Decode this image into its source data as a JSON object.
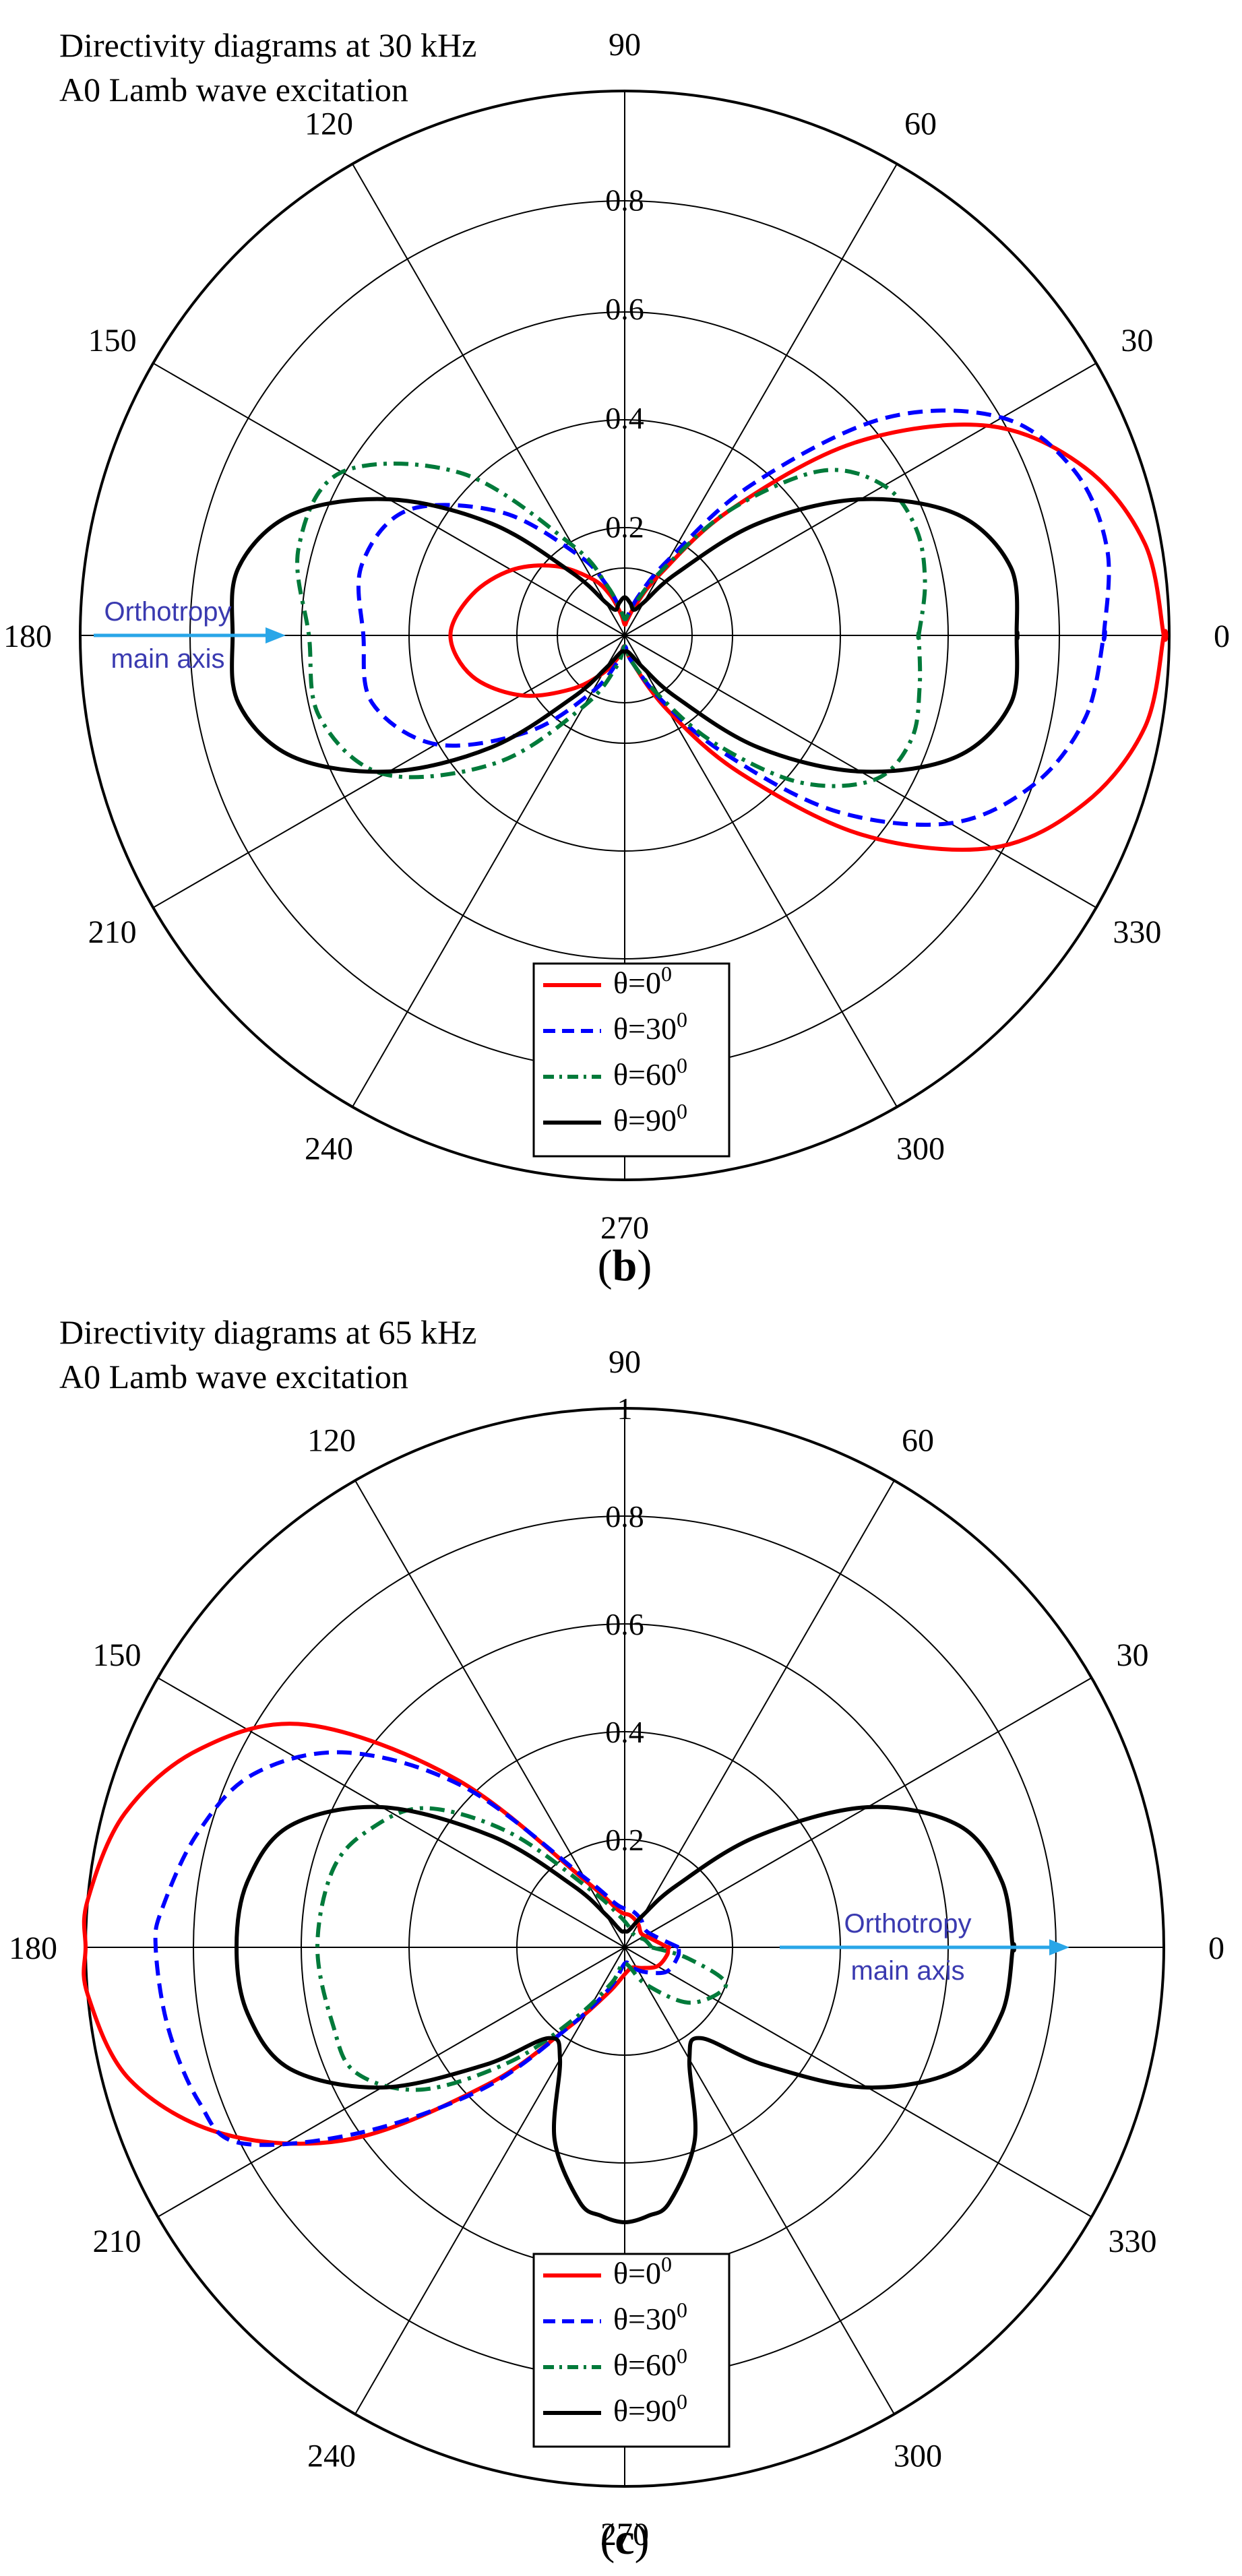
{
  "chart_data": [
    {
      "type": "polar-line",
      "panel_label": "(b)",
      "panel_letter": "b",
      "title": "Directivity diagrams at 30 kHz",
      "subtitle": "A0 Lamb wave excitation",
      "r_range": [
        0,
        1
      ],
      "radial_ticks": [
        "0.2",
        "0.4",
        "0.6",
        "0.8"
      ],
      "angle_labels": [
        "0",
        "30",
        "60",
        "90",
        "120",
        "150",
        "180",
        "210",
        "240",
        "270",
        "300",
        "330"
      ],
      "annotation": {
        "line1": "Orthotropy",
        "line2": "main axis",
        "side": "left"
      },
      "legend": [
        {
          "name": "θ=0",
          "sup": "0",
          "color": "#ff0000",
          "dash": "solid"
        },
        {
          "name": "θ=30",
          "sup": "0",
          "color": "#0000ff",
          "dash": "dash"
        },
        {
          "name": "θ=60",
          "sup": "0",
          "color": "#007a3a",
          "dash": "dashdot"
        },
        {
          "name": "θ=90",
          "sup": "0",
          "color": "#000000",
          "dash": "solid"
        }
      ],
      "series": [
        {
          "name": "θ=0",
          "points": [
            [
              0,
              0.99
            ],
            [
              10,
              0.97
            ],
            [
              20,
              0.9
            ],
            [
              30,
              0.77
            ],
            [
              40,
              0.55
            ],
            [
              50,
              0.3
            ],
            [
              60,
              0.13
            ],
            [
              70,
              0.06
            ],
            [
              80,
              0.03
            ],
            [
              90,
              0.02
            ],
            [
              100,
              0.04
            ],
            [
              110,
              0.08
            ],
            [
              120,
              0.12
            ],
            [
              135,
              0.18
            ],
            [
              150,
              0.24
            ],
            [
              165,
              0.29
            ],
            [
              180,
              0.32
            ],
            [
              195,
              0.29
            ],
            [
              210,
              0.22
            ],
            [
              225,
              0.14
            ],
            [
              240,
              0.08
            ],
            [
              255,
              0.04
            ],
            [
              270,
              0.02
            ],
            [
              285,
              0.05
            ],
            [
              300,
              0.16
            ],
            [
              310,
              0.33
            ],
            [
              320,
              0.57
            ],
            [
              330,
              0.78
            ],
            [
              340,
              0.9
            ],
            [
              350,
              0.97
            ],
            [
              360,
              0.99
            ]
          ]
        },
        {
          "name": "θ=30",
          "points": [
            [
              0,
              0.88
            ],
            [
              10,
              0.9
            ],
            [
              20,
              0.88
            ],
            [
              30,
              0.8
            ],
            [
              40,
              0.62
            ],
            [
              50,
              0.36
            ],
            [
              60,
              0.16
            ],
            [
              70,
              0.08
            ],
            [
              80,
              0.04
            ],
            [
              90,
              0.03
            ],
            [
              100,
              0.05
            ],
            [
              110,
              0.1
            ],
            [
              120,
              0.17
            ],
            [
              135,
              0.32
            ],
            [
              150,
              0.46
            ],
            [
              165,
              0.5
            ],
            [
              180,
              0.48
            ],
            [
              195,
              0.48
            ],
            [
              210,
              0.4
            ],
            [
              225,
              0.25
            ],
            [
              240,
              0.12
            ],
            [
              255,
              0.05
            ],
            [
              270,
              0.02
            ],
            [
              285,
              0.05
            ],
            [
              300,
              0.14
            ],
            [
              310,
              0.28
            ],
            [
              320,
              0.5
            ],
            [
              330,
              0.69
            ],
            [
              340,
              0.8
            ],
            [
              350,
              0.86
            ],
            [
              360,
              0.88
            ]
          ]
        },
        {
          "name": "θ=60",
          "points": [
            [
              0,
              0.54
            ],
            [
              10,
              0.56
            ],
            [
              20,
              0.57
            ],
            [
              30,
              0.55
            ],
            [
              40,
              0.47
            ],
            [
              50,
              0.3
            ],
            [
              60,
              0.14
            ],
            [
              70,
              0.07
            ],
            [
              80,
              0.04
            ],
            [
              90,
              0.03
            ],
            [
              100,
              0.05
            ],
            [
              110,
              0.1
            ],
            [
              120,
              0.19
            ],
            [
              135,
              0.42
            ],
            [
              150,
              0.6
            ],
            [
              165,
              0.62
            ],
            [
              180,
              0.58
            ],
            [
              195,
              0.58
            ],
            [
              210,
              0.51
            ],
            [
              225,
              0.33
            ],
            [
              240,
              0.15
            ],
            [
              255,
              0.06
            ],
            [
              270,
              0.02
            ],
            [
              285,
              0.05
            ],
            [
              300,
              0.13
            ],
            [
              310,
              0.26
            ],
            [
              320,
              0.42
            ],
            [
              330,
              0.53
            ],
            [
              340,
              0.56
            ],
            [
              350,
              0.55
            ],
            [
              360,
              0.54
            ]
          ]
        },
        {
          "name": "θ=90",
          "points": [
            [
              0,
              0.72
            ],
            [
              10,
              0.72
            ],
            [
              20,
              0.65
            ],
            [
              30,
              0.5
            ],
            [
              40,
              0.32
            ],
            [
              50,
              0.15
            ],
            [
              60,
              0.07
            ],
            [
              70,
              0.05
            ],
            [
              80,
              0.06
            ],
            [
              90,
              0.07
            ],
            [
              100,
              0.06
            ],
            [
              110,
              0.05
            ],
            [
              120,
              0.07
            ],
            [
              130,
              0.15
            ],
            [
              140,
              0.32
            ],
            [
              150,
              0.5
            ],
            [
              160,
              0.65
            ],
            [
              170,
              0.72
            ],
            [
              180,
              0.72
            ],
            [
              190,
              0.72
            ],
            [
              200,
              0.65
            ],
            [
              210,
              0.5
            ],
            [
              220,
              0.32
            ],
            [
              230,
              0.15
            ],
            [
              240,
              0.07
            ],
            [
              250,
              0.04
            ],
            [
              260,
              0.03
            ],
            [
              270,
              0.03
            ],
            [
              280,
              0.03
            ],
            [
              290,
              0.04
            ],
            [
              300,
              0.07
            ],
            [
              310,
              0.15
            ],
            [
              320,
              0.32
            ],
            [
              330,
              0.5
            ],
            [
              340,
              0.65
            ],
            [
              350,
              0.72
            ],
            [
              360,
              0.72
            ]
          ]
        }
      ]
    },
    {
      "type": "polar-line",
      "panel_label": "(c)",
      "panel_letter": "c",
      "title": "Directivity diagrams at 65 kHz",
      "subtitle": "A0 Lamb wave excitation",
      "r_range": [
        0,
        1
      ],
      "radial_ticks": [
        "0.2",
        "0.4",
        "0.6",
        "0.8",
        "1"
      ],
      "angle_labels": [
        "0",
        "30",
        "60",
        "90",
        "120",
        "150",
        "180",
        "210",
        "240",
        "270",
        "300",
        "330"
      ],
      "annotation": {
        "line1": "Orthotropy",
        "line2": "main axis",
        "side": "right"
      },
      "legend": [
        {
          "name": "θ=0",
          "sup": "0",
          "color": "#ff0000",
          "dash": "solid"
        },
        {
          "name": "θ=30",
          "sup": "0",
          "color": "#0000ff",
          "dash": "dash"
        },
        {
          "name": "θ=60",
          "sup": "0",
          "color": "#007a3a",
          "dash": "dashdot"
        },
        {
          "name": "θ=90",
          "sup": "0",
          "color": "#000000",
          "dash": "solid"
        }
      ],
      "series": [
        {
          "name": "θ=0",
          "points": [
            [
              0,
              0.08
            ],
            [
              20,
              0.05
            ],
            [
              40,
              0.04
            ],
            [
              60,
              0.05
            ],
            [
              80,
              0.06
            ],
            [
              100,
              0.07
            ],
            [
              120,
              0.14
            ],
            [
              135,
              0.44
            ],
            [
              145,
              0.72
            ],
            [
              155,
              0.87
            ],
            [
              165,
              0.96
            ],
            [
              175,
              1.0
            ],
            [
              180,
              1.0
            ],
            [
              185,
              1.0
            ],
            [
              195,
              0.95
            ],
            [
              205,
              0.82
            ],
            [
              215,
              0.62
            ],
            [
              225,
              0.36
            ],
            [
              235,
              0.18
            ],
            [
              250,
              0.09
            ],
            [
              270,
              0.05
            ],
            [
              290,
              0.04
            ],
            [
              310,
              0.05
            ],
            [
              330,
              0.07
            ],
            [
              350,
              0.08
            ],
            [
              360,
              0.08
            ]
          ]
        },
        {
          "name": "θ=30",
          "points": [
            [
              0,
              0.1
            ],
            [
              20,
              0.06
            ],
            [
              40,
              0.05
            ],
            [
              60,
              0.06
            ],
            [
              80,
              0.07
            ],
            [
              100,
              0.08
            ],
            [
              120,
              0.15
            ],
            [
              135,
              0.42
            ],
            [
              145,
              0.63
            ],
            [
              155,
              0.76
            ],
            [
              165,
              0.82
            ],
            [
              175,
              0.86
            ],
            [
              180,
              0.87
            ],
            [
              190,
              0.86
            ],
            [
              200,
              0.84
            ],
            [
              207,
              0.8
            ],
            [
              215,
              0.6
            ],
            [
              225,
              0.37
            ],
            [
              235,
              0.18
            ],
            [
              250,
              0.08
            ],
            [
              270,
              0.03
            ],
            [
              290,
              0.04
            ],
            [
              310,
              0.06
            ],
            [
              330,
              0.09
            ],
            [
              350,
              0.1
            ],
            [
              360,
              0.1
            ]
          ]
        },
        {
          "name": "θ=60",
          "points": [
            [
              0,
              0.05
            ],
            [
              20,
              0.04
            ],
            [
              40,
              0.03
            ],
            [
              60,
              0.03
            ],
            [
              80,
              0.04
            ],
            [
              100,
              0.06
            ],
            [
              120,
              0.12
            ],
            [
              135,
              0.3
            ],
            [
              145,
              0.45
            ],
            [
              155,
              0.52
            ],
            [
              165,
              0.56
            ],
            [
              180,
              0.57
            ],
            [
              195,
              0.56
            ],
            [
              205,
              0.55
            ],
            [
              215,
              0.46
            ],
            [
              225,
              0.3
            ],
            [
              235,
              0.16
            ],
            [
              250,
              0.07
            ],
            [
              270,
              0.03
            ],
            [
              300,
              0.08
            ],
            [
              320,
              0.16
            ],
            [
              340,
              0.2
            ],
            [
              350,
              0.12
            ],
            [
              360,
              0.05
            ]
          ]
        },
        {
          "name": "θ=90",
          "points": [
            [
              0,
              0.72
            ],
            [
              10,
              0.71
            ],
            [
              20,
              0.66
            ],
            [
              30,
              0.52
            ],
            [
              40,
              0.32
            ],
            [
              50,
              0.15
            ],
            [
              60,
              0.07
            ],
            [
              70,
              0.04
            ],
            [
              80,
              0.03
            ],
            [
              90,
              0.03
            ],
            [
              100,
              0.03
            ],
            [
              110,
              0.04
            ],
            [
              120,
              0.07
            ],
            [
              130,
              0.15
            ],
            [
              140,
              0.32
            ],
            [
              150,
              0.52
            ],
            [
              160,
              0.66
            ],
            [
              170,
              0.71
            ],
            [
              180,
              0.72
            ],
            [
              190,
              0.71
            ],
            [
              200,
              0.66
            ],
            [
              210,
              0.52
            ],
            [
              220,
              0.34
            ],
            [
              230,
              0.22
            ],
            [
              240,
              0.24
            ],
            [
              250,
              0.38
            ],
            [
              260,
              0.48
            ],
            [
              265,
              0.5
            ],
            [
              270,
              0.51
            ],
            [
              275,
              0.5
            ],
            [
              280,
              0.48
            ],
            [
              290,
              0.38
            ],
            [
              300,
              0.24
            ],
            [
              310,
              0.22
            ],
            [
              320,
              0.34
            ],
            [
              330,
              0.52
            ],
            [
              340,
              0.66
            ],
            [
              350,
              0.71
            ],
            [
              360,
              0.72
            ]
          ]
        }
      ]
    }
  ]
}
